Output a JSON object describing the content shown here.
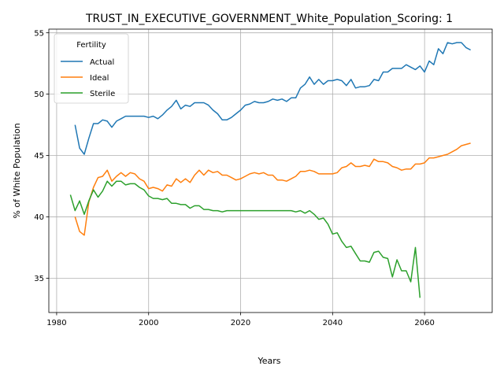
{
  "chart_data": {
    "type": "line",
    "title": "TRUST_IN_EXECUTIVE_GOVERNMENT_White_Population_Scoring: 1",
    "xlabel": "Years",
    "ylabel": "% of White Population",
    "xlim": [
      1978.3,
      2074.7
    ],
    "ylim": [
      32.2,
      55.3
    ],
    "xticks": [
      1980,
      2000,
      2020,
      2040,
      2060
    ],
    "yticks": [
      35,
      40,
      45,
      50,
      55
    ],
    "grid": true,
    "legend": {
      "title": "Fertility",
      "placement": "upper left"
    },
    "series": [
      {
        "name": "Actual",
        "color": "#1f77b4",
        "x": [
          1984,
          1985,
          1986,
          1987,
          1988,
          1989,
          1990,
          1991,
          1992,
          1993,
          1994,
          1995,
          1996,
          1997,
          1998,
          1999,
          2000,
          2001,
          2002,
          2003,
          2004,
          2005,
          2006,
          2007,
          2008,
          2009,
          2010,
          2011,
          2012,
          2013,
          2014,
          2015,
          2016,
          2017,
          2018,
          2019,
          2020,
          2021,
          2022,
          2023,
          2024,
          2025,
          2026,
          2027,
          2028,
          2029,
          2030,
          2031,
          2032,
          2033,
          2034,
          2035,
          2036,
          2037,
          2038,
          2039,
          2040,
          2041,
          2042,
          2043,
          2044,
          2045,
          2046,
          2047,
          2048,
          2049,
          2050,
          2051,
          2052,
          2053,
          2054,
          2055,
          2056,
          2057,
          2058,
          2059,
          2060,
          2061,
          2062,
          2063,
          2064,
          2065,
          2066,
          2067,
          2068,
          2069,
          2070
        ],
        "y": [
          47.5,
          45.6,
          45.1,
          46.4,
          47.6,
          47.6,
          47.9,
          47.8,
          47.3,
          47.8,
          48.0,
          48.2,
          48.2,
          48.2,
          48.2,
          48.2,
          48.1,
          48.2,
          48.0,
          48.3,
          48.7,
          49.0,
          49.5,
          48.8,
          49.1,
          49.0,
          49.3,
          49.3,
          49.3,
          49.1,
          48.7,
          48.4,
          47.9,
          47.9,
          48.1,
          48.4,
          48.7,
          49.1,
          49.2,
          49.4,
          49.3,
          49.3,
          49.4,
          49.6,
          49.5,
          49.6,
          49.4,
          49.7,
          49.7,
          50.5,
          50.8,
          51.4,
          50.8,
          51.2,
          50.8,
          51.1,
          51.1,
          51.2,
          51.1,
          50.7,
          51.2,
          50.5,
          50.6,
          50.6,
          50.7,
          51.2,
          51.1,
          51.8,
          51.8,
          52.1,
          52.1,
          52.1,
          52.4,
          52.2,
          52.0,
          52.3,
          51.8,
          52.7,
          52.4,
          53.7,
          53.3,
          54.2,
          54.1,
          54.2,
          54.2,
          53.8,
          53.6
        ]
      },
      {
        "name": "Ideal",
        "color": "#ff7f0e",
        "x": [
          1984,
          1985,
          1986,
          1987,
          1988,
          1989,
          1990,
          1991,
          1992,
          1993,
          1994,
          1995,
          1996,
          1997,
          1998,
          1999,
          2000,
          2001,
          2002,
          2003,
          2004,
          2005,
          2006,
          2007,
          2008,
          2009,
          2010,
          2011,
          2012,
          2013,
          2014,
          2015,
          2016,
          2017,
          2018,
          2019,
          2020,
          2021,
          2022,
          2023,
          2024,
          2025,
          2026,
          2027,
          2028,
          2029,
          2030,
          2031,
          2032,
          2033,
          2034,
          2035,
          2036,
          2037,
          2038,
          2039,
          2040,
          2041,
          2042,
          2043,
          2044,
          2045,
          2046,
          2047,
          2048,
          2049,
          2050,
          2051,
          2052,
          2053,
          2054,
          2055,
          2056,
          2057,
          2058,
          2059,
          2060,
          2061,
          2062,
          2063,
          2064,
          2065,
          2066,
          2067,
          2068,
          2069,
          2070
        ],
        "y": [
          40.0,
          38.8,
          38.5,
          41.2,
          42.4,
          43.2,
          43.3,
          43.8,
          42.9,
          43.3,
          43.6,
          43.3,
          43.6,
          43.5,
          43.1,
          42.9,
          42.3,
          42.4,
          42.3,
          42.1,
          42.6,
          42.5,
          43.1,
          42.8,
          43.1,
          42.8,
          43.4,
          43.8,
          43.4,
          43.8,
          43.6,
          43.7,
          43.4,
          43.4,
          43.2,
          43.0,
          43.1,
          43.3,
          43.5,
          43.6,
          43.5,
          43.6,
          43.4,
          43.4,
          43.0,
          43.0,
          42.9,
          43.1,
          43.3,
          43.7,
          43.7,
          43.8,
          43.7,
          43.5,
          43.5,
          43.5,
          43.5,
          43.6,
          44.0,
          44.1,
          44.4,
          44.1,
          44.1,
          44.2,
          44.1,
          44.7,
          44.5,
          44.5,
          44.4,
          44.1,
          44.0,
          43.8,
          43.9,
          43.9,
          44.3,
          44.3,
          44.4,
          44.8,
          44.8,
          44.9,
          45.0,
          45.1,
          45.3,
          45.5,
          45.8,
          45.9,
          46.0
        ]
      },
      {
        "name": "Sterile",
        "color": "#2ca02c",
        "x": [
          1983,
          1984,
          1985,
          1986,
          1987,
          1988,
          1989,
          1990,
          1991,
          1992,
          1993,
          1994,
          1995,
          1996,
          1997,
          1998,
          1999,
          2000,
          2001,
          2002,
          2003,
          2004,
          2005,
          2006,
          2007,
          2008,
          2009,
          2010,
          2011,
          2012,
          2013,
          2014,
          2015,
          2016,
          2017,
          2018,
          2019,
          2020,
          2021,
          2022,
          2023,
          2024,
          2025,
          2026,
          2027,
          2028,
          2029,
          2030,
          2031,
          2032,
          2033,
          2034,
          2035,
          2036,
          2037,
          2038,
          2039,
          2040,
          2041,
          2042,
          2043,
          2044,
          2045,
          2046,
          2047,
          2048,
          2049,
          2050,
          2051,
          2052,
          2053,
          2054,
          2055,
          2056,
          2057,
          2058,
          2059
        ],
        "y": [
          41.8,
          40.5,
          41.3,
          40.2,
          41.3,
          42.2,
          41.6,
          42.1,
          42.9,
          42.5,
          42.9,
          42.9,
          42.6,
          42.7,
          42.7,
          42.4,
          42.2,
          41.7,
          41.5,
          41.5,
          41.4,
          41.5,
          41.1,
          41.1,
          41.0,
          41.0,
          40.7,
          40.9,
          40.9,
          40.6,
          40.6,
          40.5,
          40.5,
          40.4,
          40.5,
          40.5,
          40.5,
          40.5,
          40.5,
          40.5,
          40.5,
          40.5,
          40.5,
          40.5,
          40.5,
          40.5,
          40.5,
          40.5,
          40.5,
          40.4,
          40.5,
          40.3,
          40.5,
          40.2,
          39.8,
          39.9,
          39.4,
          38.6,
          38.7,
          38.0,
          37.5,
          37.6,
          37.0,
          36.4,
          36.4,
          36.3,
          37.1,
          37.2,
          36.7,
          36.6,
          35.1,
          36.5,
          35.6,
          35.6,
          34.7,
          37.5,
          33.4
        ]
      }
    ]
  }
}
